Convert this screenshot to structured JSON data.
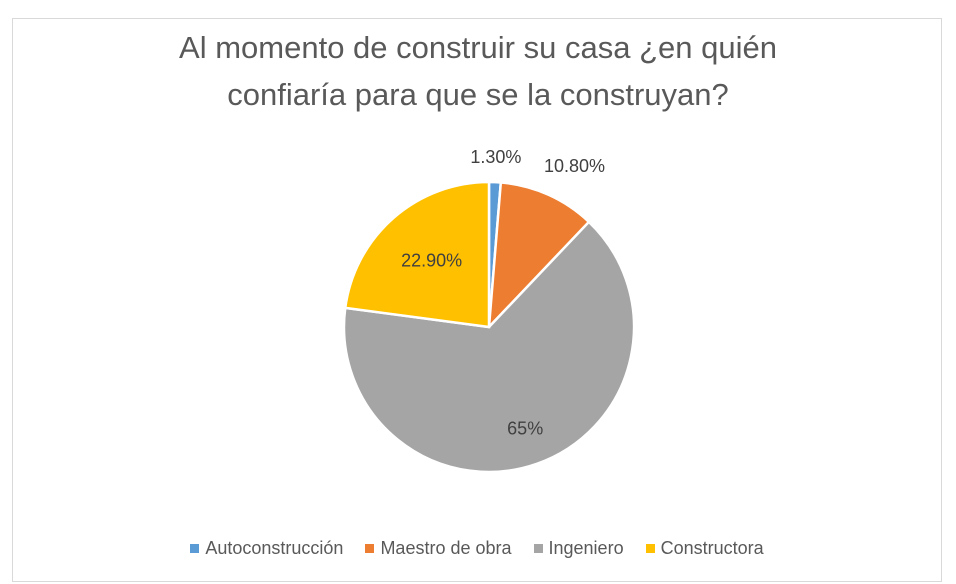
{
  "chart_data": {
    "type": "pie",
    "title": "Al momento de construir su casa ¿en quién confiaría para que se la construyan?",
    "categories": [
      "Autoconstrucción",
      "Maestro de obra",
      "Ingeniero",
      "Constructora"
    ],
    "values": [
      1.3,
      10.8,
      65,
      22.9
    ],
    "value_labels": [
      "1.30%",
      "10.80%",
      "65%",
      "22.90%"
    ],
    "colors": [
      "#5b9bd5",
      "#ed7d31",
      "#a5a5a5",
      "#ffc000"
    ],
    "legend": "bottom"
  }
}
